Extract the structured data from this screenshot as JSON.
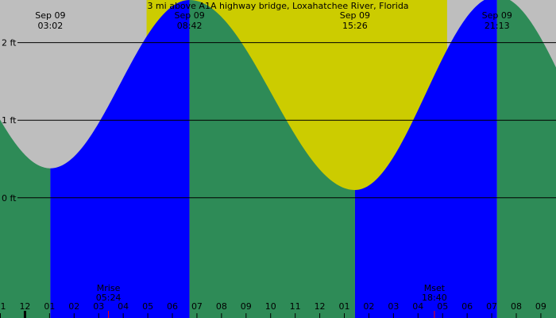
{
  "chart_data": {
    "type": "area",
    "title": "3 mi above A1A highway bridge, Loxahatchee River, Florida",
    "xlabel": "",
    "ylabel": "",
    "y_unit": "ft",
    "ylim": [
      -1.55,
      2.55
    ],
    "xlim": [
      "00:59",
      "23:37"
    ],
    "grid": "horizontal lines at labeled levels",
    "y_ticks": [
      {
        "value": 0,
        "label": "0 ft"
      },
      {
        "value": 1,
        "label": "1 ft"
      },
      {
        "value": 2,
        "label": "2 ft"
      }
    ],
    "x_ticks": [
      "1",
      "12",
      "01",
      "02",
      "03",
      "04",
      "05",
      "06",
      "07",
      "08",
      "09",
      "10",
      "11",
      "12",
      "01",
      "02",
      "03",
      "04",
      "05",
      "06",
      "07",
      "08",
      "09"
    ],
    "daylight": {
      "start": "06:57",
      "end": "19:11"
    },
    "tide_events": [
      {
        "date": "Sep 09",
        "time": "03:02",
        "type": "low",
        "height": 0.38
      },
      {
        "date": "Sep 09",
        "time": "08:42",
        "type": "high",
        "height": 2.55
      },
      {
        "date": "Sep 09",
        "time": "15:26",
        "type": "low",
        "height": 0.1
      },
      {
        "date": "Sep 09",
        "time": "21:13",
        "type": "high",
        "height": 2.6
      }
    ],
    "moon_events": [
      {
        "label": "Mrise",
        "time": "05:24"
      },
      {
        "label": "Mset",
        "time": "18:40"
      }
    ],
    "colors": {
      "night": "#bebebe",
      "day": "#cccc00",
      "rising": "#0000ff",
      "falling": "#2e8b57",
      "moon_tick": "#ff0000"
    }
  }
}
